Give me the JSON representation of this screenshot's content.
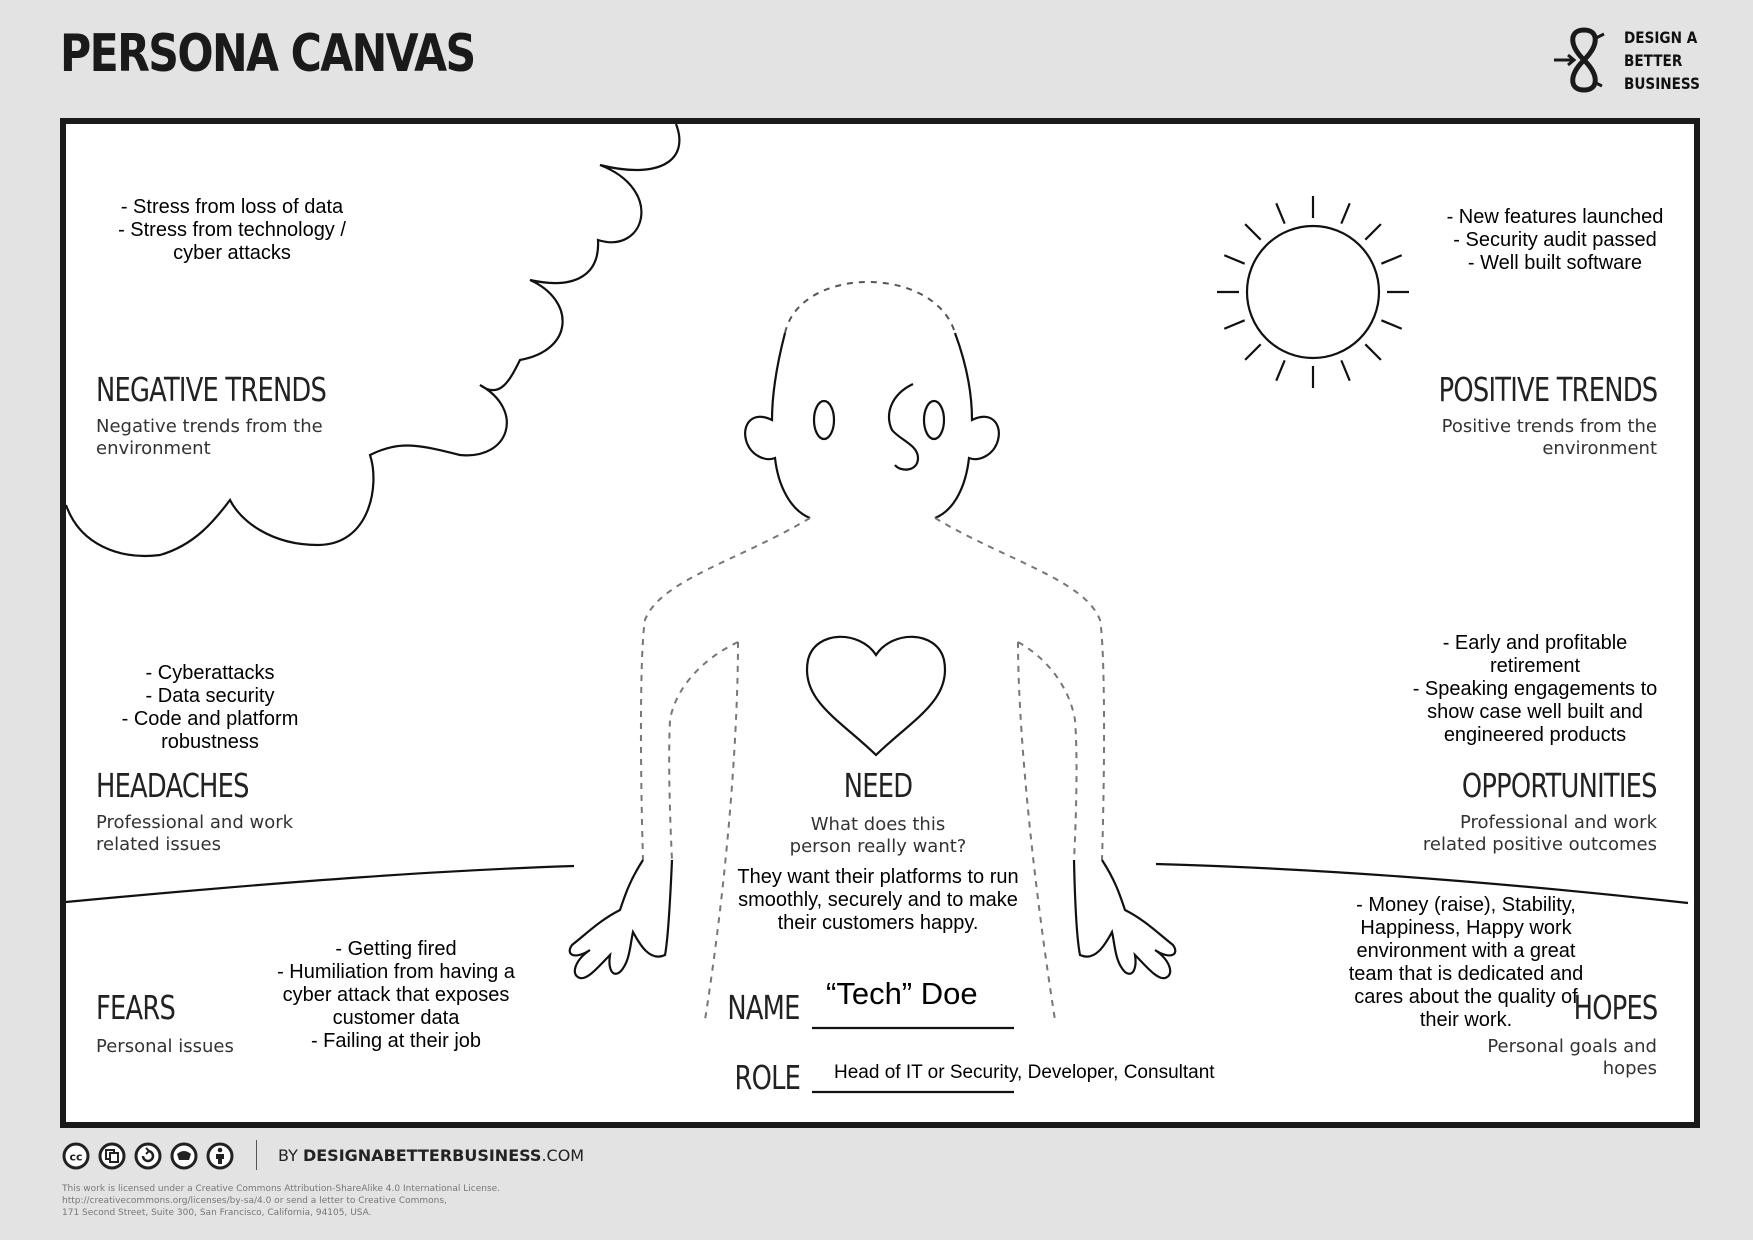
{
  "header": {
    "title": "PERSONA CANVAS",
    "logo_lines": [
      "DESIGN A",
      "BETTER",
      "BUSINESS"
    ],
    "logo_icon": "infinity-arrows-icon"
  },
  "sections": {
    "negative_trends": {
      "heading": "NEGATIVE TRENDS",
      "description": "Negative trends from the environment",
      "notes": [
        "- Stress from loss of data",
        "- Stress from technology /",
        "cyber attacks"
      ]
    },
    "positive_trends": {
      "heading": "POSITIVE TRENDS",
      "description": "Positive trends from the environment",
      "notes": [
        "- New features launched",
        "- Security audit passed",
        "- Well built software"
      ]
    },
    "headaches": {
      "heading": "HEADACHES",
      "description": "Professional and work related issues",
      "notes": [
        "- Cyberattacks",
        "- Data security",
        "- Code and platform",
        "robustness"
      ]
    },
    "opportunities": {
      "heading": "OPPORTUNITIES",
      "description": "Professional and work related positive outcomes",
      "notes": [
        "- Early and profitable",
        "retirement",
        "- Speaking engagements to",
        "show case well built and",
        "engineered products"
      ]
    },
    "need": {
      "heading": "NEED",
      "description": "What does this person really want?",
      "notes": [
        "They want their platforms to run",
        "smoothly, securely and to make",
        "their customers happy."
      ]
    },
    "fears": {
      "heading": "FEARS",
      "description": "Personal issues",
      "notes": [
        "- Getting fired",
        "- Humiliation from having a",
        "cyber attack that exposes",
        "customer data",
        "- Failing at their job"
      ]
    },
    "hopes": {
      "heading": "HOPES",
      "description": "Personal goals and hopes",
      "notes": [
        "- Money (raise), Stability,",
        "Happiness, Happy work",
        "environment with a great",
        "team that is dedicated and",
        "cares about the quality of",
        "their work."
      ]
    }
  },
  "persona": {
    "name_label": "NAME",
    "name_value": "“Tech” Doe",
    "role_label": "ROLE",
    "role_value": "Head of IT or Security, Developer, Consultant"
  },
  "footer": {
    "cc_icons": [
      "cc-icon",
      "share-icon",
      "remix-icon",
      "noncommercial-icon",
      "attribution-icon"
    ],
    "by_prefix": "BY ",
    "by_name": "DESIGNABETTERBUSINESS",
    "by_suffix": ".COM",
    "license_lines": [
      "This work is licensed under a Creative Commons Attribution-ShareAlike 4.0 International License.",
      "http://creativecommons.org/licenses/by-sa/4.0 or send a letter to Creative Commons,",
      "171 Second Street, Suite 300, San Francisco, California, 94105, USA."
    ]
  }
}
